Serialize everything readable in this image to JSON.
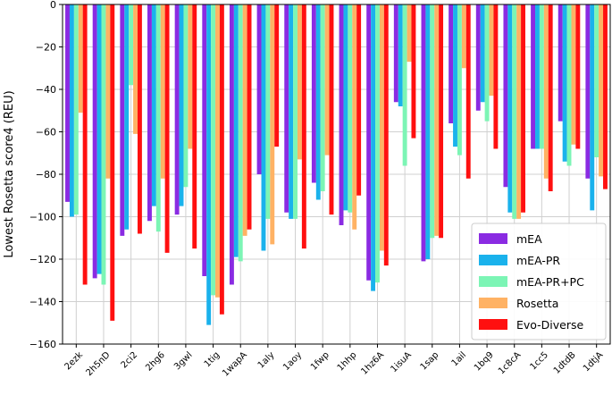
{
  "chart_data": {
    "type": "bar",
    "title": "",
    "xlabel": "",
    "ylabel": "Lowest Rosetta score4 (REU)",
    "ylim": [
      -160,
      0
    ],
    "yticks": [
      0,
      -20,
      -40,
      -60,
      -80,
      -100,
      -120,
      -140,
      -160
    ],
    "grid": true,
    "legend_position": "bottom-right",
    "categories": [
      "2ezk",
      "2h5nD",
      "2ci2",
      "2hg6",
      "3gwl",
      "1tig",
      "1wapA",
      "1aly",
      "1aoy",
      "1fwp",
      "1hhp",
      "1hz6A",
      "1isuA",
      "1sap",
      "1ail",
      "1bq9",
      "1c8cA",
      "1cc5",
      "1dtdB",
      "1dtjA"
    ],
    "series": [
      {
        "name": "mEA",
        "color": "#8a2be2",
        "values": [
          -93,
          -129,
          -109,
          -102,
          -99,
          -128,
          -132,
          -80,
          -98,
          -84,
          -104,
          -130,
          -46,
          -121,
          -56,
          -50,
          -86,
          -68,
          -55,
          -82
        ]
      },
      {
        "name": "mEA-PR",
        "color": "#1ab2ec",
        "values": [
          -100,
          -127,
          -106,
          -95,
          -95,
          -151,
          -119,
          -116,
          -101,
          -92,
          -97,
          -135,
          -48,
          -120,
          -67,
          -46,
          -98,
          -68,
          -74,
          -97
        ]
      },
      {
        "name": "mEA-PR+PC",
        "color": "#7cf5b5",
        "values": [
          -99,
          -132,
          -38,
          -107,
          -86,
          -137,
          -121,
          -101,
          -101,
          -88,
          -98,
          -131,
          -76,
          -110,
          -71,
          -55,
          -101,
          -68,
          -76,
          -72
        ]
      },
      {
        "name": "Rosetta",
        "color": "#ffb264",
        "values": [
          -51,
          -82,
          -61,
          -82,
          -68,
          -138,
          -109,
          -113,
          -73,
          -71,
          -106,
          -116,
          -27,
          -109,
          -30,
          -43,
          -101,
          -82,
          -66,
          -81
        ]
      },
      {
        "name": "Evo-Diverse",
        "color": "#ff1010",
        "values": [
          -132,
          -149,
          -108,
          -117,
          -115,
          -146,
          -106,
          -67,
          -115,
          -99,
          -90,
          -123,
          -63,
          -110,
          -82,
          -68,
          -98,
          -88,
          -68,
          -87
        ]
      }
    ]
  }
}
